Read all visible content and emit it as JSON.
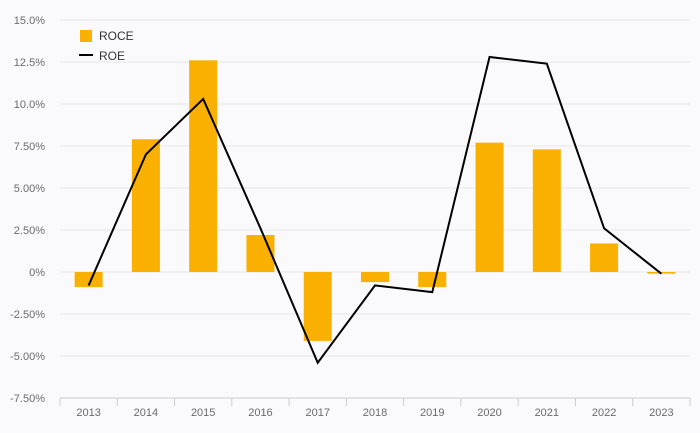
{
  "chart_data": {
    "type": "bar",
    "categories": [
      "2013",
      "2014",
      "2015",
      "2016",
      "2017",
      "2018",
      "2019",
      "2020",
      "2021",
      "2022",
      "2023"
    ],
    "series": [
      {
        "name": "ROCE",
        "type": "bar",
        "color": "#f9b000",
        "values": [
          -0.9,
          7.9,
          12.6,
          2.2,
          -4.1,
          -0.6,
          -0.9,
          7.7,
          7.3,
          1.7,
          -0.1
        ]
      },
      {
        "name": "ROE",
        "type": "line",
        "color": "#000000",
        "values": [
          -0.8,
          7.0,
          10.3,
          2.6,
          -5.4,
          -0.8,
          -1.2,
          12.8,
          12.4,
          2.6,
          -0.1
        ]
      }
    ],
    "ylim": [
      -7.5,
      15
    ],
    "yticks": [
      "15.0%",
      "12.5%",
      "10.0%",
      "7.50%",
      "5.00%",
      "2.50%",
      "0%",
      "-2.50%",
      "-5.00%",
      "-7.50%"
    ],
    "grid": true,
    "legend_position": "top-left"
  }
}
